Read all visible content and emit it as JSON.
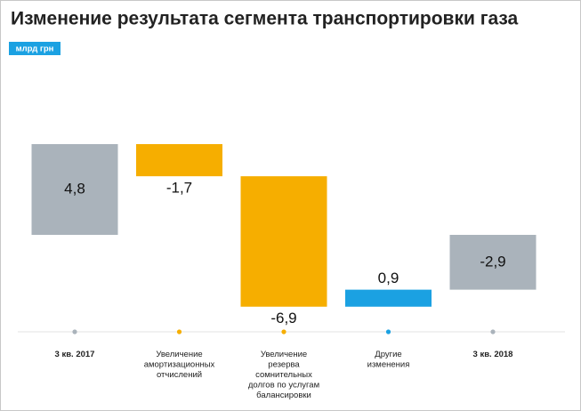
{
  "chart_data": {
    "type": "waterfall",
    "title": "Изменение результата сегмента транспортировки газа",
    "unit": "млрд грн",
    "categories": [
      [
        "3 кв. 2017"
      ],
      [
        "Увеличение",
        "амортизационных",
        "отчислений"
      ],
      [
        "Увеличение",
        "резерва",
        "сомнительных",
        "долгов по услугам",
        "балансировки"
      ],
      [
        "Другие",
        "изменения"
      ],
      [
        "3 кв. 2018"
      ]
    ],
    "values": [
      4.8,
      -1.7,
      -6.9,
      0.9,
      -2.9
    ],
    "value_labels": [
      "4,8",
      "-1,7",
      "-6,9",
      "0,9",
      "-2,9"
    ],
    "totals": [
      true,
      false,
      false,
      false,
      true
    ],
    "colors": [
      "#aab3bb",
      "#f6ae00",
      "#f6ae00",
      "#1ba1e2",
      "#aab3bb"
    ]
  }
}
